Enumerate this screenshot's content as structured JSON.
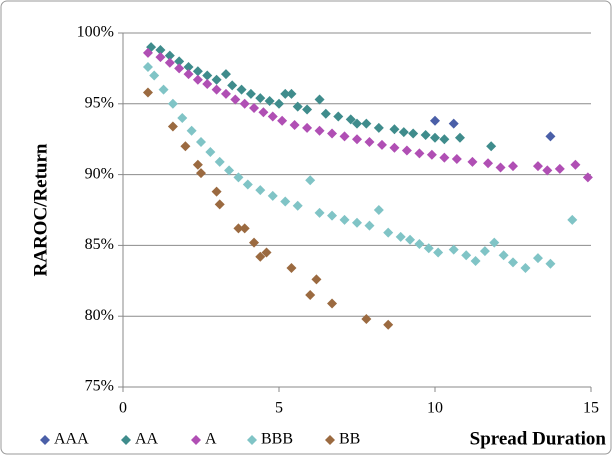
{
  "chart_data": {
    "type": "scatter",
    "x_label": "Spread Duration",
    "y_label": "RAROC/Return",
    "xlim": [
      0,
      15
    ],
    "xticks": [
      0,
      5,
      10,
      15
    ],
    "ylim": [
      75,
      100
    ],
    "yticks": [
      {
        "value": 75,
        "label": "75%"
      },
      {
        "value": 80,
        "label": "80%"
      },
      {
        "value": 85,
        "label": "85%"
      },
      {
        "value": 90,
        "label": "90%"
      },
      {
        "value": 95,
        "label": "95%"
      },
      {
        "value": 100,
        "label": "100%"
      }
    ],
    "grid": true,
    "legend": "bottom",
    "series": [
      {
        "name": "AAA",
        "color": "#4a5fa8",
        "x": [
          10.0,
          10.6,
          13.7
        ],
        "values": [
          93.8,
          93.6,
          92.7
        ]
      },
      {
        "name": "AA",
        "color": "#3f8c8c",
        "x": [
          0.9,
          1.2,
          1.5,
          1.8,
          2.1,
          2.4,
          2.7,
          3.0,
          3.3,
          3.5,
          3.8,
          4.1,
          4.4,
          4.7,
          5.0,
          5.2,
          5.4,
          5.6,
          5.9,
          6.3,
          6.5,
          6.9,
          7.3,
          7.5,
          7.8,
          8.2,
          8.7,
          9.0,
          9.3,
          9.7,
          10.0,
          10.3,
          10.8,
          11.8
        ],
        "values": [
          99.0,
          98.8,
          98.4,
          98.0,
          97.6,
          97.3,
          97.0,
          96.7,
          97.1,
          96.3,
          96.0,
          95.7,
          95.4,
          95.2,
          95.0,
          95.7,
          95.7,
          94.8,
          94.6,
          95.3,
          94.3,
          94.1,
          93.9,
          93.6,
          93.6,
          93.3,
          93.2,
          93.0,
          92.9,
          92.8,
          92.6,
          92.5,
          92.6,
          92.0
        ]
      },
      {
        "name": "A",
        "color": "#b04fb4",
        "x": [
          0.8,
          1.2,
          1.5,
          1.8,
          2.1,
          2.4,
          2.7,
          3.0,
          3.3,
          3.6,
          3.9,
          4.2,
          4.5,
          4.8,
          5.1,
          5.5,
          5.9,
          6.3,
          6.7,
          7.1,
          7.5,
          7.9,
          8.3,
          8.7,
          9.1,
          9.5,
          9.9,
          10.3,
          10.7,
          11.2,
          11.7,
          12.1,
          12.5,
          13.3,
          13.6,
          14.0,
          14.5,
          14.9
        ],
        "values": [
          98.6,
          98.3,
          97.9,
          97.5,
          97.1,
          96.7,
          96.4,
          96.0,
          95.7,
          95.3,
          95.0,
          94.7,
          94.4,
          94.1,
          93.8,
          93.5,
          93.3,
          93.1,
          92.9,
          92.7,
          92.5,
          92.3,
          92.1,
          91.9,
          91.7,
          91.5,
          91.4,
          91.2,
          91.1,
          90.9,
          90.8,
          90.5,
          90.6,
          90.6,
          90.3,
          90.4,
          90.7,
          89.8
        ]
      },
      {
        "name": "BBB",
        "color": "#80c4c6",
        "x": [
          0.8,
          1.0,
          1.3,
          1.6,
          1.9,
          2.2,
          2.5,
          2.8,
          3.1,
          3.4,
          3.7,
          4.0,
          4.4,
          4.8,
          5.2,
          5.6,
          6.0,
          6.3,
          6.7,
          7.1,
          7.5,
          7.9,
          8.2,
          8.5,
          8.9,
          9.2,
          9.5,
          9.8,
          10.1,
          10.6,
          11.0,
          11.3,
          11.6,
          11.9,
          12.2,
          12.5,
          12.9,
          13.3,
          13.7,
          14.4
        ],
        "values": [
          97.6,
          97.0,
          96.0,
          95.0,
          94.0,
          93.1,
          92.3,
          91.6,
          90.9,
          90.3,
          89.8,
          89.3,
          88.9,
          88.5,
          88.1,
          87.8,
          89.6,
          87.3,
          87.1,
          86.8,
          86.6,
          86.4,
          87.5,
          85.9,
          85.6,
          85.4,
          85.1,
          84.8,
          84.5,
          84.7,
          84.3,
          83.9,
          84.6,
          85.2,
          84.3,
          83.8,
          83.4,
          84.1,
          83.7,
          86.8
        ]
      },
      {
        "name": "BB",
        "color": "#9b6a40",
        "x": [
          0.8,
          1.6,
          2.0,
          2.4,
          2.5,
          3.0,
          3.1,
          3.7,
          3.9,
          4.2,
          4.4,
          4.6,
          5.4,
          6.0,
          6.2,
          6.7,
          7.8,
          8.5
        ],
        "values": [
          95.8,
          93.4,
          92.0,
          90.7,
          90.1,
          88.8,
          87.9,
          86.2,
          86.2,
          85.2,
          84.2,
          84.5,
          83.4,
          81.5,
          82.6,
          80.9,
          79.8,
          79.4
        ]
      }
    ]
  }
}
